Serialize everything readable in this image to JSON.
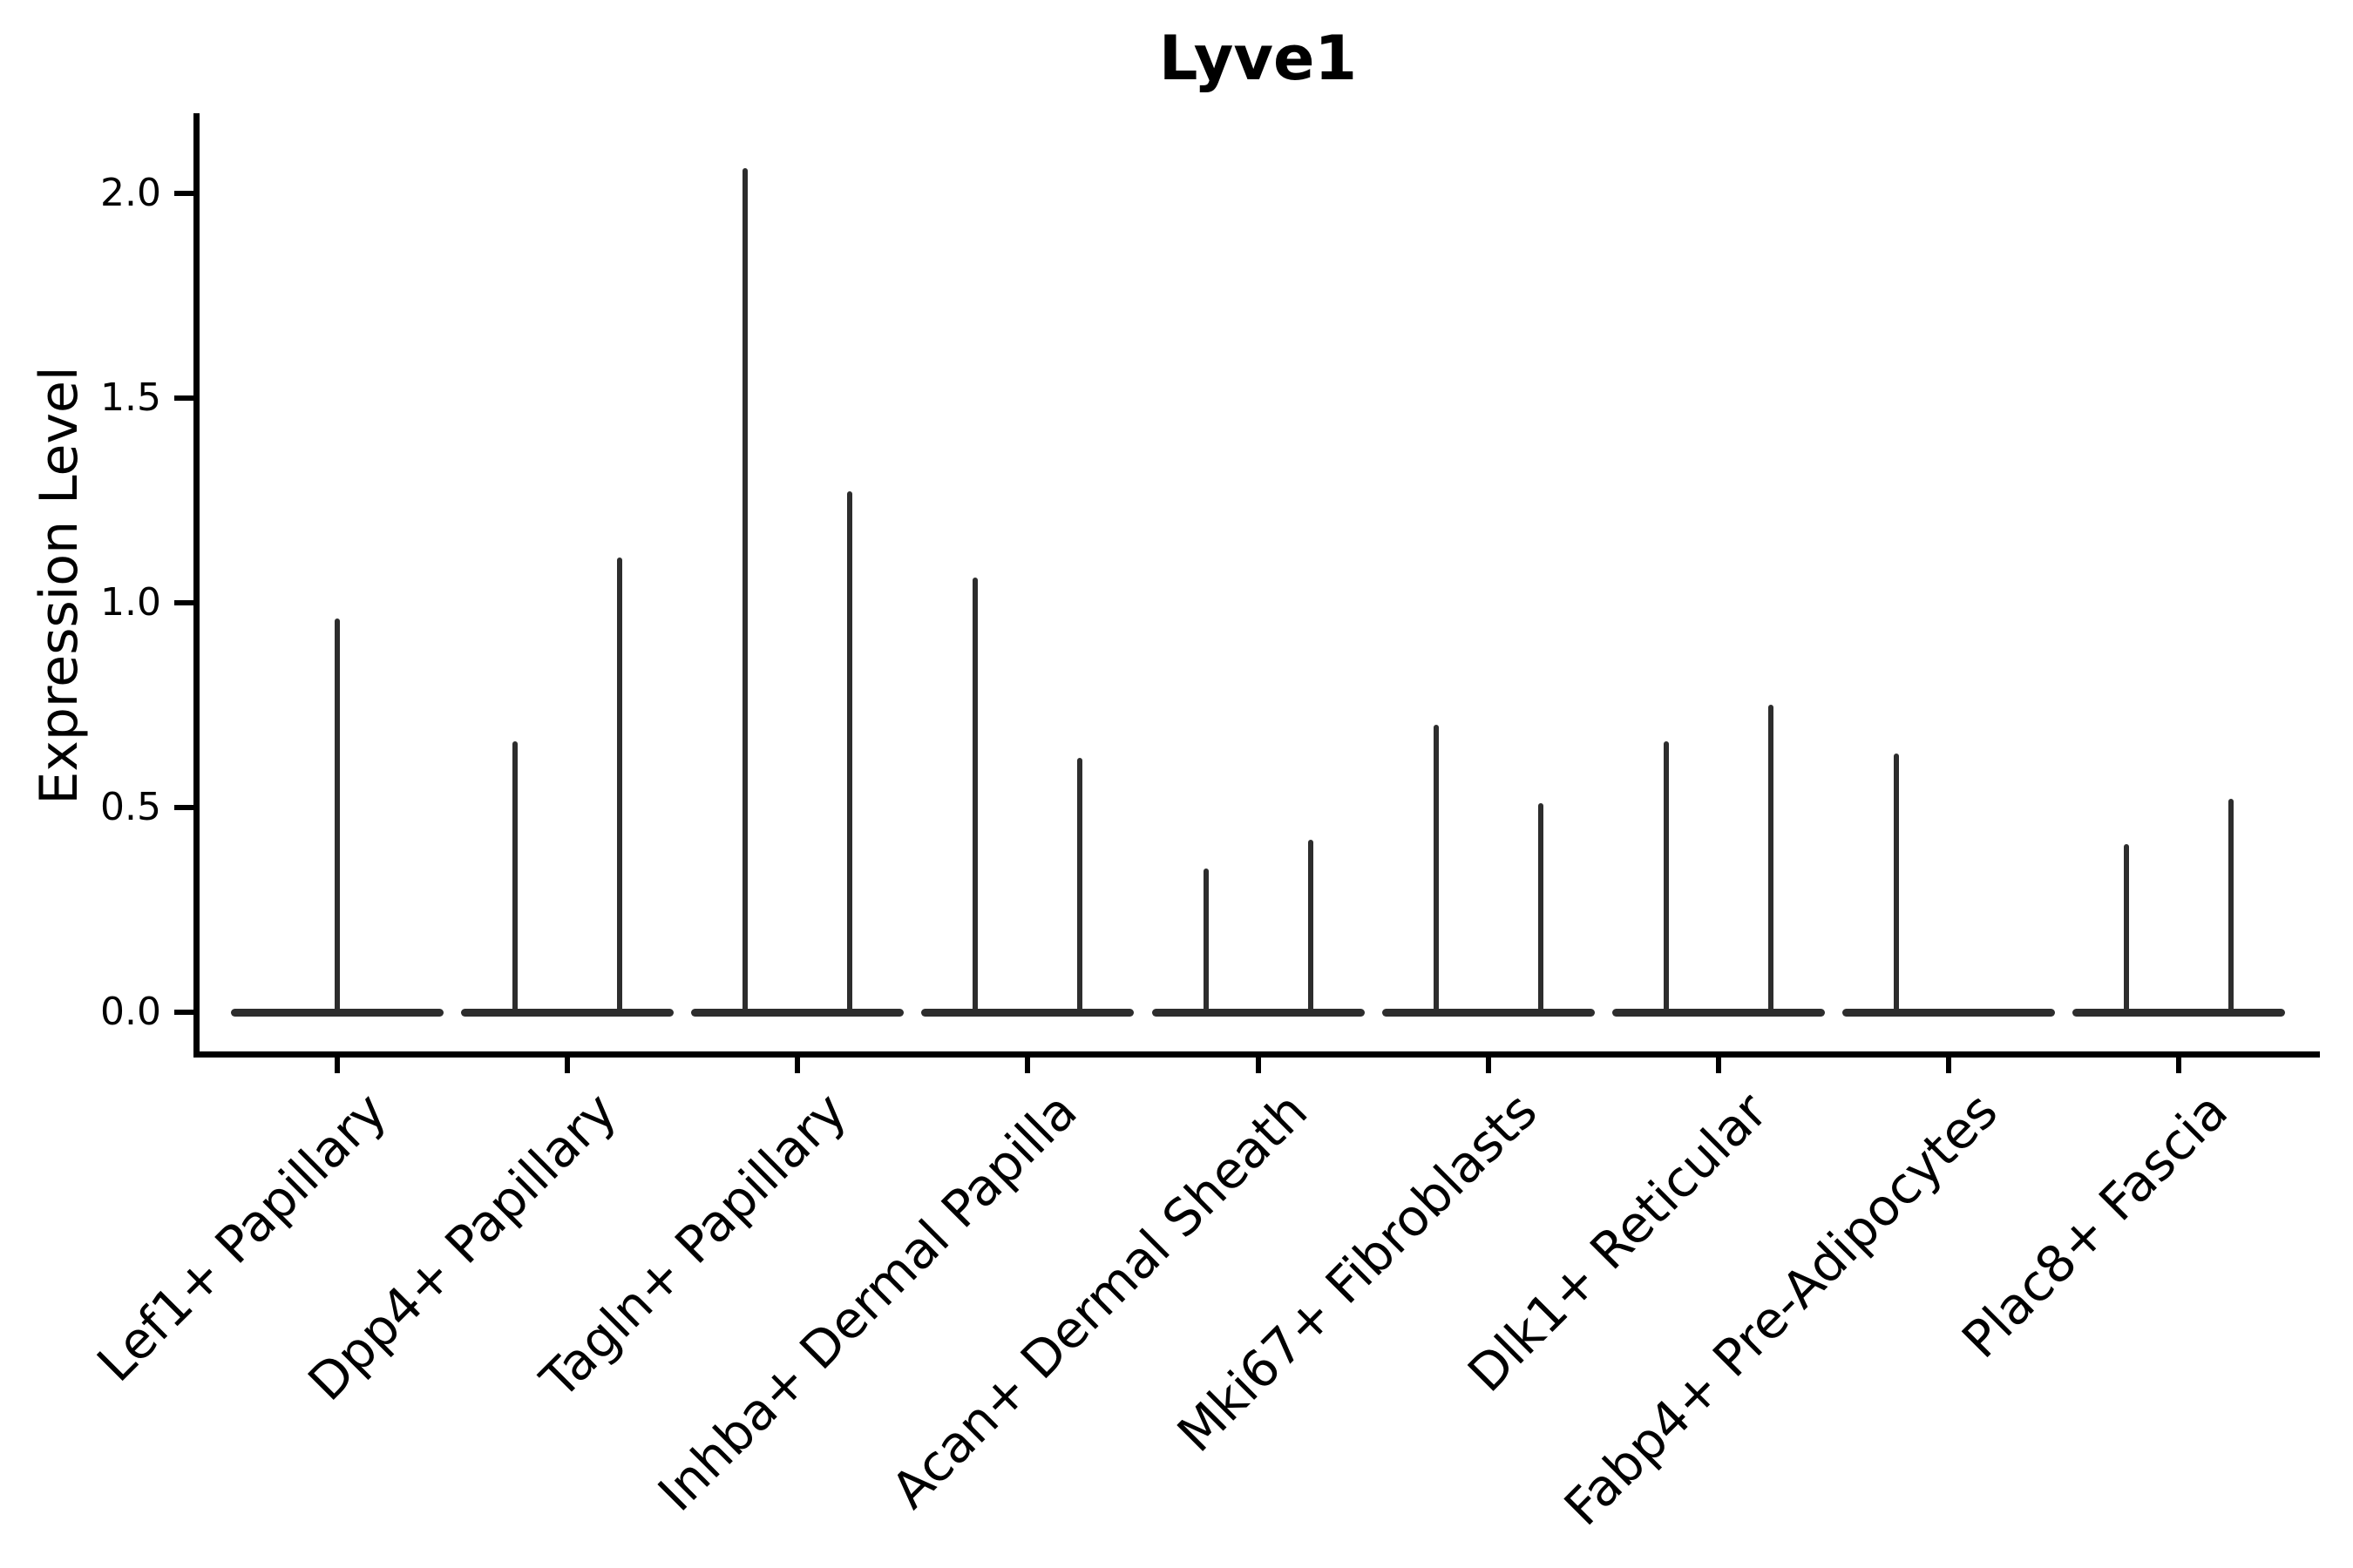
{
  "chart_data": {
    "type": "violin",
    "title": "Lyve1",
    "ylabel": "Expression Level",
    "xlabel": "",
    "grid": false,
    "legend": null,
    "ylim": [
      -0.1,
      2.2
    ],
    "ytick_values": [
      0.0,
      0.5,
      1.0,
      1.5,
      2.0
    ],
    "ytick_labels": [
      "0.0",
      "0.5",
      "1.0",
      "1.5",
      "2.0"
    ],
    "categories": [
      "Lef1+ Papillary",
      "Dpp4+ Papillary",
      "Tagln+ Papillary",
      "Inhba+ Dermal Papilla",
      "Acan+ Dermal Sheath",
      "Mki67+ Fibroblasts",
      "Dlk1+ Reticular",
      "Fabp4+ Pre-Adipocytes",
      "Plac8+ Fascia"
    ],
    "violins": [
      {
        "category": "Lef1+ Papillary",
        "spikes": [
          {
            "slot": 0,
            "max": 0.97
          }
        ]
      },
      {
        "category": "Dpp4+ Papillary",
        "spikes": [
          {
            "slot": -1,
            "max": 0.67
          },
          {
            "slot": 1,
            "max": 1.12
          }
        ]
      },
      {
        "category": "Tagln+ Papillary",
        "spikes": [
          {
            "slot": -1,
            "max": 2.07
          },
          {
            "slot": 1,
            "max": 1.28
          }
        ]
      },
      {
        "category": "Inhba+ Dermal Papilla",
        "spikes": [
          {
            "slot": -1,
            "max": 1.07
          },
          {
            "slot": 1,
            "max": 0.63
          }
        ]
      },
      {
        "category": "Acan+ Dermal Sheath",
        "spikes": [
          {
            "slot": -1,
            "max": 0.36
          },
          {
            "slot": 1,
            "max": 0.43
          }
        ]
      },
      {
        "category": "Mki67+ Fibroblasts",
        "spikes": [
          {
            "slot": -1,
            "max": 0.71
          },
          {
            "slot": 1,
            "max": 0.52
          }
        ]
      },
      {
        "category": "Dlk1+ Reticular",
        "spikes": [
          {
            "slot": -1,
            "max": 0.67
          },
          {
            "slot": 1,
            "max": 0.76
          }
        ]
      },
      {
        "category": "Fabp4+ Pre-Adipocytes",
        "spikes": [
          {
            "slot": -1,
            "max": 0.64
          }
        ]
      },
      {
        "category": "Plac8+ Fascia",
        "spikes": [
          {
            "slot": -1,
            "max": 0.42
          },
          {
            "slot": 1,
            "max": 0.53
          }
        ]
      }
    ],
    "baseline_value": 0.0,
    "colors": {
      "violin": "#2d2d2d",
      "axis": "#000000",
      "text": "#000000",
      "background": "#ffffff"
    }
  }
}
